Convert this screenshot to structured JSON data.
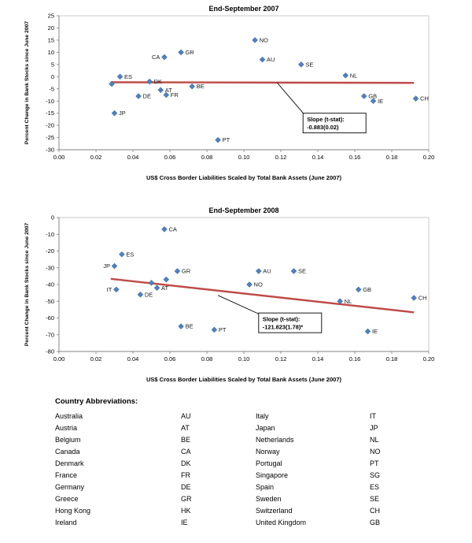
{
  "abbreviations": {
    "heading": "Country Abbreviations:",
    "rows": [
      [
        "Australia",
        "AU",
        "Italy",
        "IT"
      ],
      [
        "Austria",
        "AT",
        "Japan",
        "JP"
      ],
      [
        "Belgium",
        "BE",
        "Netherlands",
        "NL"
      ],
      [
        "Canada",
        "CA",
        "Norway",
        "NO"
      ],
      [
        "Denmark",
        "DK",
        "Portugal",
        "PT"
      ],
      [
        "France",
        "FR",
        "Singapore",
        "SG"
      ],
      [
        "Germany",
        "DE",
        "Spain",
        "ES"
      ],
      [
        "Greece",
        "GR",
        "Sweden",
        "SE"
      ],
      [
        "Hong Kong",
        "HK",
        "Switzerland",
        "CH"
      ],
      [
        "Ireland",
        "IE",
        "United Kingdom",
        "GB"
      ]
    ]
  },
  "chart_data": [
    {
      "type": "scatter",
      "title": "End-September 2007",
      "xlabel": "US$ Cross Border Liabilities Scaled by Total Bank Assets (June 2007)",
      "ylabel": "Percent Change in Bank Stocks since June 2007",
      "xlim": [
        0,
        0.2
      ],
      "ylim": [
        -30,
        25
      ],
      "xticks": [
        0,
        0.02,
        0.04,
        0.06,
        0.08,
        0.1,
        0.12,
        0.14,
        0.16,
        0.18,
        0.2
      ],
      "yticks": [
        25,
        20,
        15,
        10,
        5,
        0,
        -5,
        -10,
        -15,
        -20,
        -25,
        -30
      ],
      "marker_color": "#4f81bd",
      "marker_edge": "#385d8a",
      "trend_color": "#be4b48",
      "grid": false,
      "points": [
        {
          "label": "ES",
          "x": 0.033,
          "y": 0
        },
        {
          "label": "",
          "x": 0.0285,
          "y": -3
        },
        {
          "label": "JP",
          "x": 0.03,
          "y": -15
        },
        {
          "label": "DE",
          "x": 0.043,
          "y": -8
        },
        {
          "label": "DK",
          "x": 0.049,
          "y": -2
        },
        {
          "label": "AT",
          "x": 0.055,
          "y": -5.5
        },
        {
          "label": "FR",
          "x": 0.058,
          "y": -7.5
        },
        {
          "label": "CA",
          "x": 0.057,
          "y": 8,
          "side": "left"
        },
        {
          "label": "GR",
          "x": 0.066,
          "y": 10
        },
        {
          "label": "BE",
          "x": 0.072,
          "y": -4
        },
        {
          "label": "PT",
          "x": 0.086,
          "y": -26
        },
        {
          "label": "NO",
          "x": 0.106,
          "y": 15
        },
        {
          "label": "AU",
          "x": 0.11,
          "y": 7
        },
        {
          "label": "SE",
          "x": 0.131,
          "y": 5
        },
        {
          "label": "NL",
          "x": 0.155,
          "y": 0.5
        },
        {
          "label": "GB",
          "x": 0.165,
          "y": -8
        },
        {
          "label": "IE",
          "x": 0.17,
          "y": -10
        },
        {
          "label": "CH",
          "x": 0.193,
          "y": -9
        }
      ],
      "trend": {
        "x1": 0.028,
        "y1": -2.3,
        "x2": 0.192,
        "y2": -2.55
      },
      "annotation": {
        "lines": [
          "Slope (t-stat):",
          "-0.883(0.02)"
        ],
        "box_x": 0.132,
        "box_y": -15,
        "leader_x": 0.118,
        "leader_y": -2.5
      }
    },
    {
      "type": "scatter",
      "title": "End-September 2008",
      "xlabel": "US$ Cross Border Liabilities Scaled by Total Bank Assets (June 2007)",
      "ylabel": "Percent Change in Bank Stocks since June 2007",
      "xlim": [
        0,
        0.2
      ],
      "ylim": [
        -80,
        0
      ],
      "xticks": [
        0,
        0.02,
        0.04,
        0.06,
        0.08,
        0.1,
        0.12,
        0.14,
        0.16,
        0.18,
        0.2
      ],
      "yticks": [
        0,
        -10,
        -20,
        -30,
        -40,
        -50,
        -60,
        -70,
        -80
      ],
      "marker_color": "#4f81bd",
      "marker_edge": "#385d8a",
      "trend_color": "#be4b48",
      "grid": false,
      "points": [
        {
          "label": "CA",
          "x": 0.057,
          "y": -7
        },
        {
          "label": "ES",
          "x": 0.034,
          "y": -22
        },
        {
          "label": "JP",
          "x": 0.03,
          "y": -29,
          "side": "left"
        },
        {
          "label": "GR",
          "x": 0.064,
          "y": -32
        },
        {
          "label": "AU",
          "x": 0.108,
          "y": -32
        },
        {
          "label": "SE",
          "x": 0.127,
          "y": -32
        },
        {
          "label": "IT",
          "x": 0.031,
          "y": -43,
          "side": "left"
        },
        {
          "label": "DE",
          "x": 0.044,
          "y": -46
        },
        {
          "label": "AT",
          "x": 0.053,
          "y": -42
        },
        {
          "label": "",
          "x": 0.05,
          "y": -39
        },
        {
          "label": "",
          "x": 0.058,
          "y": -37
        },
        {
          "label": "NO",
          "x": 0.103,
          "y": -40
        },
        {
          "label": "NL",
          "x": 0.152,
          "y": -50
        },
        {
          "label": "GB",
          "x": 0.162,
          "y": -43
        },
        {
          "label": "CH",
          "x": 0.192,
          "y": -48
        },
        {
          "label": "BE",
          "x": 0.066,
          "y": -65
        },
        {
          "label": "PT",
          "x": 0.084,
          "y": -67
        },
        {
          "label": "IE",
          "x": 0.167,
          "y": -68
        }
      ],
      "trend": {
        "x1": 0.028,
        "y1": -36.6,
        "x2": 0.192,
        "y2": -56.6
      },
      "annotation": {
        "lines": [
          "Slope (t-stat):",
          "-121.823(1.78)*"
        ],
        "box_x": 0.108,
        "box_y": -57,
        "leader_x": 0.086,
        "leader_y": -46.5
      }
    }
  ]
}
